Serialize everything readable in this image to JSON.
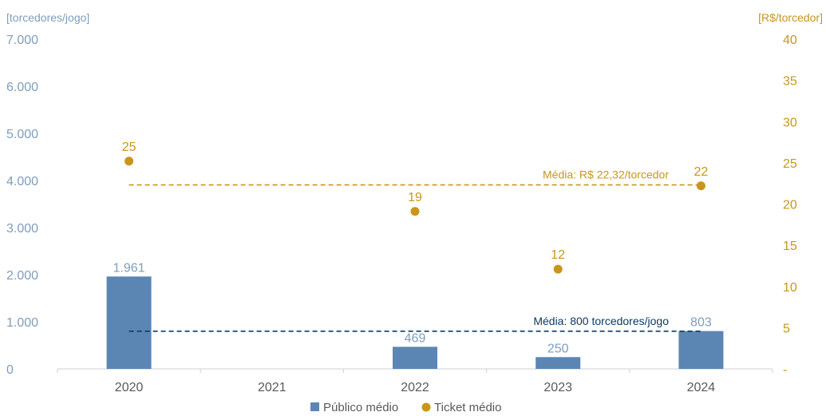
{
  "chart_data": {
    "type": "bar",
    "categories": [
      "2020",
      "2021",
      "2022",
      "2023",
      "2024"
    ],
    "series": [
      {
        "name": "Público médio",
        "kind": "bar",
        "axis": "left",
        "color": "#5b86b3",
        "values": [
          1961,
          null,
          469,
          250,
          803
        ],
        "labels": [
          "1.961",
          "",
          "469",
          "250",
          "803"
        ]
      },
      {
        "name": "Ticket médio",
        "kind": "scatter",
        "axis": "right",
        "color": "#c9961a",
        "values": [
          25.2,
          null,
          19.1,
          12.1,
          22.2
        ],
        "labels": [
          "25",
          "",
          "19",
          "12",
          "22"
        ]
      }
    ],
    "y_left": {
      "label": "[torcedores/jogo]",
      "range": [
        0,
        7000
      ],
      "ticks": [
        0,
        1000,
        2000,
        3000,
        4000,
        5000,
        6000,
        7000
      ],
      "tick_labels": [
        "0",
        "1.000",
        "2.000",
        "3.000",
        "4.000",
        "5.000",
        "6.000",
        "7.000"
      ]
    },
    "y_right": {
      "label": "[R$/torcedor]",
      "range": [
        0,
        40
      ],
      "ticks": [
        0,
        5,
        10,
        15,
        20,
        25,
        30,
        35,
        40
      ],
      "tick_labels": [
        "-",
        "5",
        "10",
        "15",
        "20",
        "25",
        "30",
        "35",
        "40"
      ]
    },
    "reference_lines": [
      {
        "axis": "left",
        "value": 800,
        "label": "Média: 800 torcedores/jogo",
        "color": "#0b3b66"
      },
      {
        "axis": "right",
        "value": 22.32,
        "label": "Média: R$ 22,32/torcedor",
        "color": "#c9961a"
      }
    ],
    "grid": false,
    "legend": {
      "position": "bottom",
      "items": [
        "Público médio",
        "Ticket médio"
      ]
    }
  }
}
